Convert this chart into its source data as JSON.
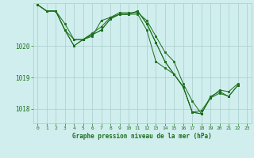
{
  "xlabel": "Graphe pression niveau de la mer (hPa)",
  "background_color": "#d0eeee",
  "grid_color": "#aacccc",
  "line_color": "#1a6e1a",
  "ylim": [
    1017.55,
    1021.35
  ],
  "xlim": [
    -0.5,
    23.5
  ],
  "yticks": [
    1018,
    1019,
    1020
  ],
  "xticks": [
    0,
    1,
    2,
    3,
    4,
    5,
    6,
    7,
    8,
    9,
    10,
    11,
    12,
    13,
    14,
    15,
    16,
    17,
    18,
    19,
    20,
    21,
    22,
    23
  ],
  "series": [
    [
      1021.3,
      1021.1,
      1021.1,
      1020.7,
      1020.2,
      1020.2,
      1020.3,
      1020.8,
      1020.9,
      1021.0,
      1021.0,
      1021.0,
      1020.5,
      1019.5,
      1019.3,
      1019.1,
      1018.7,
      1017.9,
      1017.95,
      1018.35,
      1018.6,
      1018.55,
      1018.8,
      null
    ],
    [
      1021.3,
      1021.1,
      1021.1,
      1020.5,
      1020.2,
      1020.2,
      1020.4,
      1020.6,
      1020.9,
      1021.05,
      1021.05,
      1021.05,
      1020.8,
      1020.3,
      1019.8,
      1019.5,
      1018.8,
      1018.25,
      1017.85,
      null,
      null,
      null,
      null,
      null
    ],
    [
      1021.3,
      1021.1,
      1021.1,
      1020.5,
      1020.0,
      1020.2,
      1020.35,
      1020.5,
      1020.85,
      1021.0,
      1021.0,
      1021.1,
      1020.7,
      1020.1,
      1019.5,
      1019.1,
      1018.7,
      1017.9,
      1017.85,
      1018.35,
      1018.5,
      1018.4,
      1018.75,
      null
    ],
    [
      1021.3,
      1021.1,
      1021.1,
      1020.5,
      1020.0,
      1020.2,
      1020.35,
      1020.5,
      1020.85,
      1021.0,
      1021.0,
      1021.1,
      1020.7,
      1020.1,
      1019.5,
      1019.1,
      1018.7,
      1017.9,
      1017.85,
      1018.4,
      1018.55,
      1018.4,
      1018.75,
      null
    ]
  ]
}
